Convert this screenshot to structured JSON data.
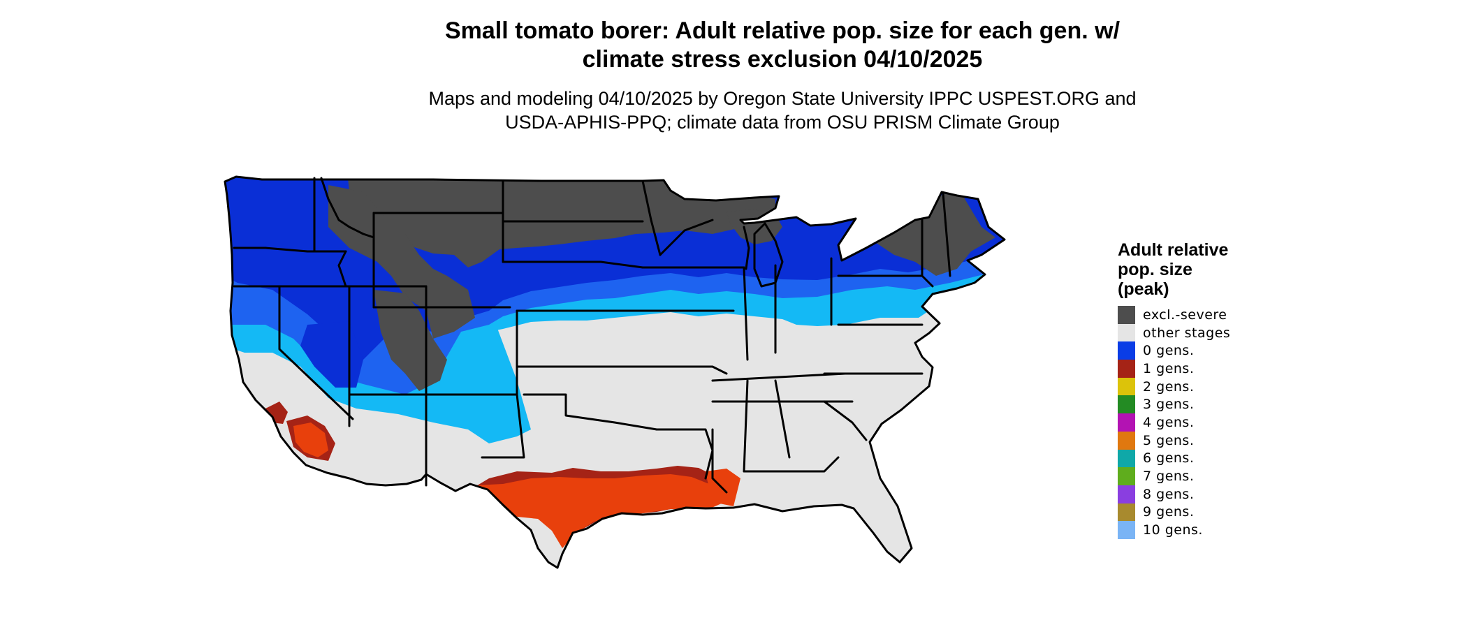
{
  "title": {
    "line1": "Small tomato borer: Adult relative pop. size for each gen. w/",
    "line2": "climate stress exclusion 04/10/2025"
  },
  "subtitle": {
    "line1": "Maps and modeling 04/10/2025 by Oregon State University IPPC USPEST.ORG and",
    "line2": "USDA-APHIS-PPQ; climate data from OSU PRISM Climate Group"
  },
  "legend": {
    "title_line1": "Adult relative",
    "title_line2": "pop. size",
    "title_line3": "(peak)",
    "items": [
      {
        "label": "excl.-severe",
        "color": "#4d4d4d"
      },
      {
        "label": "other stages",
        "color": "#e5e5e5"
      },
      {
        "label": "0 gens.",
        "color": "#0a3de6"
      },
      {
        "label": "1 gens.",
        "color": "#a52316"
      },
      {
        "label": "2 gens.",
        "color": "#dcc30a"
      },
      {
        "label": "3 gens.",
        "color": "#238b23"
      },
      {
        "label": "4 gens.",
        "color": "#b313b3"
      },
      {
        "label": "5 gens.",
        "color": "#e0780f"
      },
      {
        "label": "6 gens.",
        "color": "#0fa8a8"
      },
      {
        "label": "7 gens.",
        "color": "#5fad1d"
      },
      {
        "label": "8 gens.",
        "color": "#8a3ee0"
      },
      {
        "label": "9 gens.",
        "color": "#a88a2e"
      },
      {
        "label": "10 gens.",
        "color": "#7ab4f5"
      }
    ]
  },
  "map_colors": {
    "excluded": "#4d4d4d",
    "other_stages": "#e5e5e5",
    "gen0_dark": "#0a2fd6",
    "gen0_mid": "#1e63f0",
    "gen0_light": "#14b9f5",
    "gen1_dark": "#a52316",
    "gen1_bright": "#e8400c",
    "gen2": "#e8d80a",
    "borders": "#000000"
  }
}
